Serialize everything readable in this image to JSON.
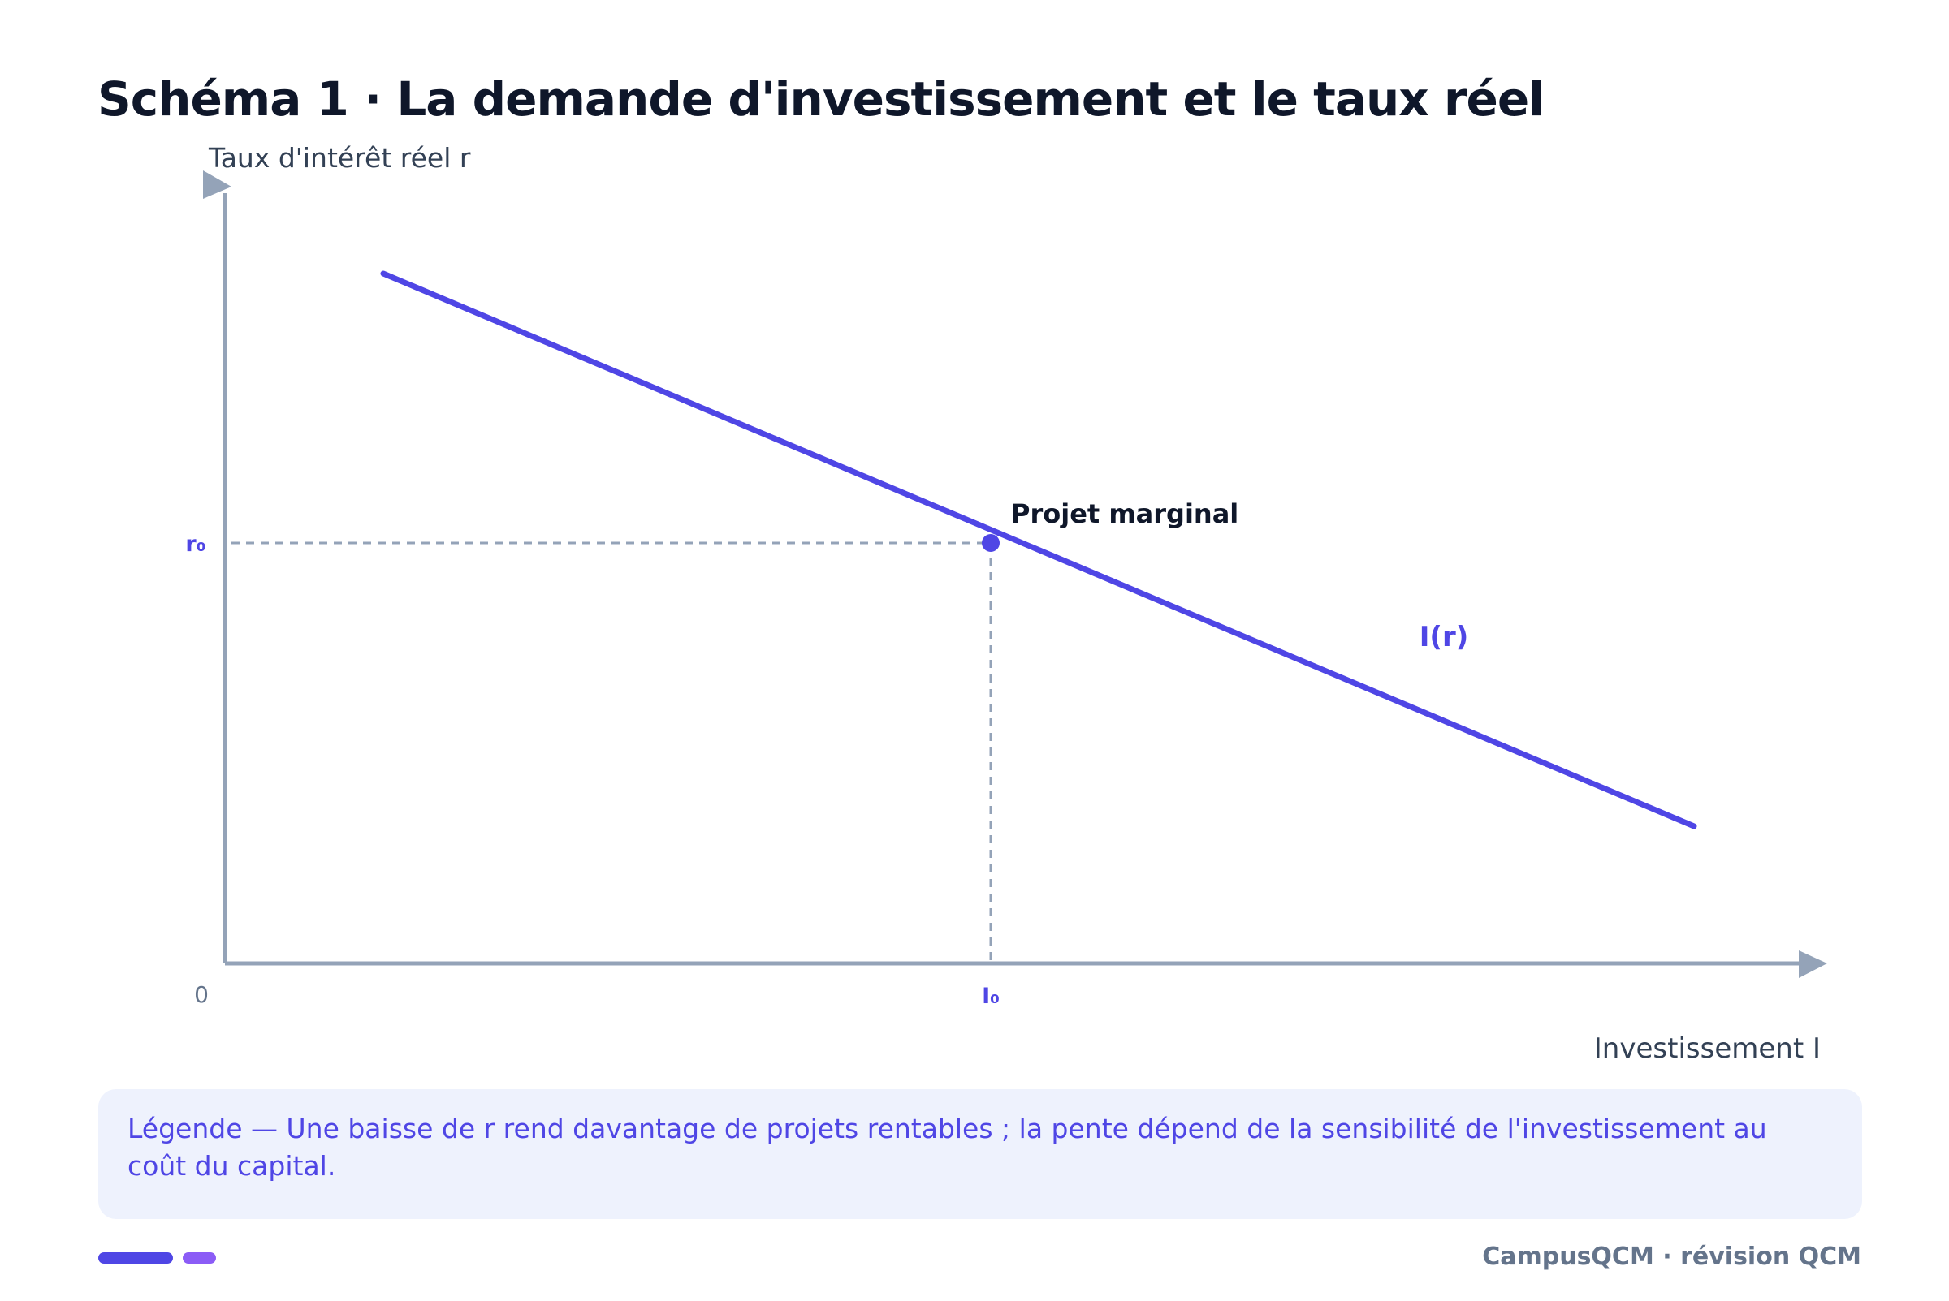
{
  "title": "Schéma 1 · La demande d'investissement et le taux réel",
  "diagram": {
    "y_axis_label": "Taux d'intérêt réel r",
    "x_axis_label": "Investissement I",
    "origin_label": "0",
    "r0_label": "r₀",
    "i0_label": "I₀",
    "point_label": "Projet marginal",
    "curve_label": "I(r)"
  },
  "legend": {
    "text": "Légende — Une baisse de r rend davantage de projets rentables ; la pente dépend de la sensibilité de l'investissement au coût du capital."
  },
  "footer": {
    "brand": "CampusQCM · révision QCM"
  },
  "colors": {
    "accent": "#4f46e5",
    "accent_secondary": "#8b5cf6",
    "axis": "#94a3b8",
    "title": "#0f172a",
    "legend_bg": "#eef2fd",
    "muted": "#64748b"
  }
}
